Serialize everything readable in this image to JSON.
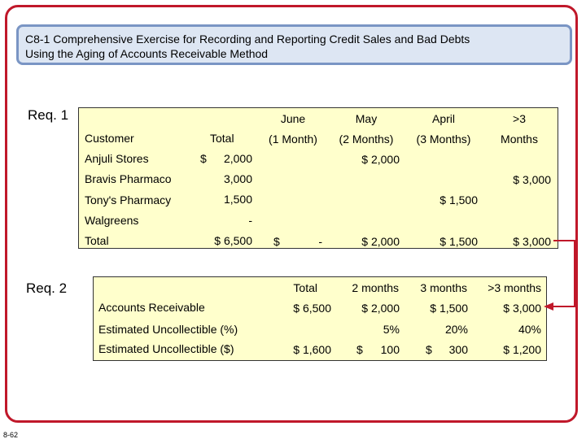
{
  "title": {
    "line1": "C8-1 Comprehensive Exercise for Recording and Reporting Credit Sales and Bad Debts",
    "line2": "Using the Aging of Accounts Receivable Method"
  },
  "req1": {
    "label": "Req. 1",
    "headers": {
      "customer": "Customer",
      "total": "Total",
      "june_top": "June",
      "june_bottom": "(1 Month)",
      "may_top": "May",
      "may_bottom": "(2 Months)",
      "april_top": "April",
      "april_bottom": "(3 Months)",
      "over3_top": ">3",
      "over3_bottom": "Months"
    },
    "rows": [
      {
        "customer": "Anjuli Stores",
        "dollar": "$",
        "total": "2,000",
        "may": "$ 2,000"
      },
      {
        "customer": "Bravis Pharmaco",
        "total": "3,000",
        "over3": "$ 3,000"
      },
      {
        "customer": "Tony's Pharmacy",
        "total": "1,500",
        "april": "$ 1,500"
      },
      {
        "customer": "Walgreens",
        "total": "-"
      }
    ],
    "totals": {
      "label": "Total",
      "total": "$ 6,500",
      "june_dollar": "$",
      "june_value": "-",
      "may": "$ 2,000",
      "april": "$ 1,500",
      "over3": "$ 3,000"
    }
  },
  "req2": {
    "label": "Req. 2",
    "headers": {
      "total": "Total",
      "m2": "2 months",
      "m3": "3 months",
      "over3": ">3 months"
    },
    "rows": [
      {
        "label": "Accounts Receivable",
        "total": "$ 6,500",
        "m2": "$ 2,000",
        "m3": "$ 1,500",
        "over3": "$ 3,000"
      },
      {
        "label": "Estimated Uncollectible (%)",
        "m2": "5%",
        "m3": "20%",
        "over3": "40%"
      },
      {
        "label": "Estimated Uncollectible ($)",
        "total": "$ 1,600",
        "m2_dollar": "$",
        "m2": "100",
        "m3_dollar": "$",
        "m3": "300",
        "over3": "$ 1,200"
      }
    ]
  },
  "footer": {
    "page_number": "8-62"
  },
  "colors": {
    "frame": "#c0182a",
    "title_bg": "#dde6f3",
    "title_border": "#7a95c4",
    "table_bg": "#ffffcc",
    "arrow": "#c0182a"
  }
}
